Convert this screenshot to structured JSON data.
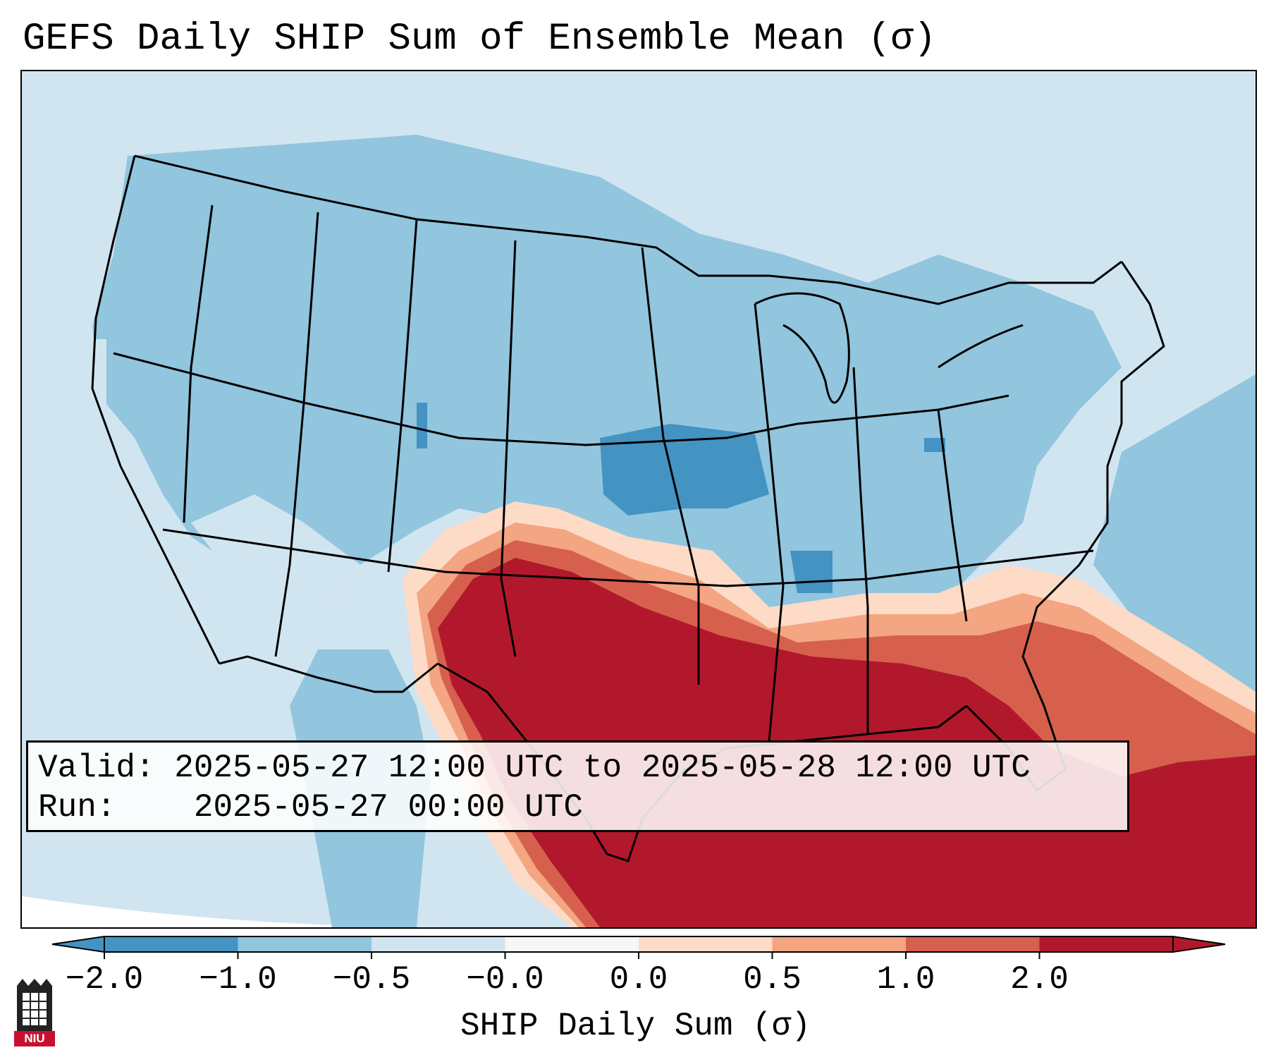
{
  "title": "GEFS Daily SHIP Sum of Ensemble Mean (σ)",
  "info": {
    "valid_label": "Valid:",
    "valid_value": "2025-05-27 12:00 UTC to 2025-05-28 12:00 UTC",
    "run_label": "Run:",
    "run_value": "2025-05-27 00:00 UTC"
  },
  "colorbar": {
    "label": "SHIP Daily Sum (σ)",
    "tick_labels": [
      "−2.0",
      "−1.0",
      "−0.5",
      "−0.0",
      "0.0",
      "0.5",
      "1.0",
      "2.0"
    ],
    "colors": [
      "#4393c3",
      "#92c5de",
      "#d1e5f0",
      "#f7f7f7",
      "#fddbc7",
      "#f4a582",
      "#d6604d",
      "#b2182b"
    ],
    "extend": "both"
  },
  "map": {
    "region": "Contiguous United States",
    "field_colors": {
      "strong_negative": "#4393c3",
      "negative": "#92c5de",
      "slight_negative": "#d1e5f0",
      "neutral": "#f7f7f7",
      "slight_positive": "#fddbc7",
      "positive": "#f4a582",
      "strong_positive": "#d6604d",
      "very_strong_positive": "#b2182b"
    }
  },
  "logo": {
    "text": "NIU",
    "color": "#c8102e"
  }
}
